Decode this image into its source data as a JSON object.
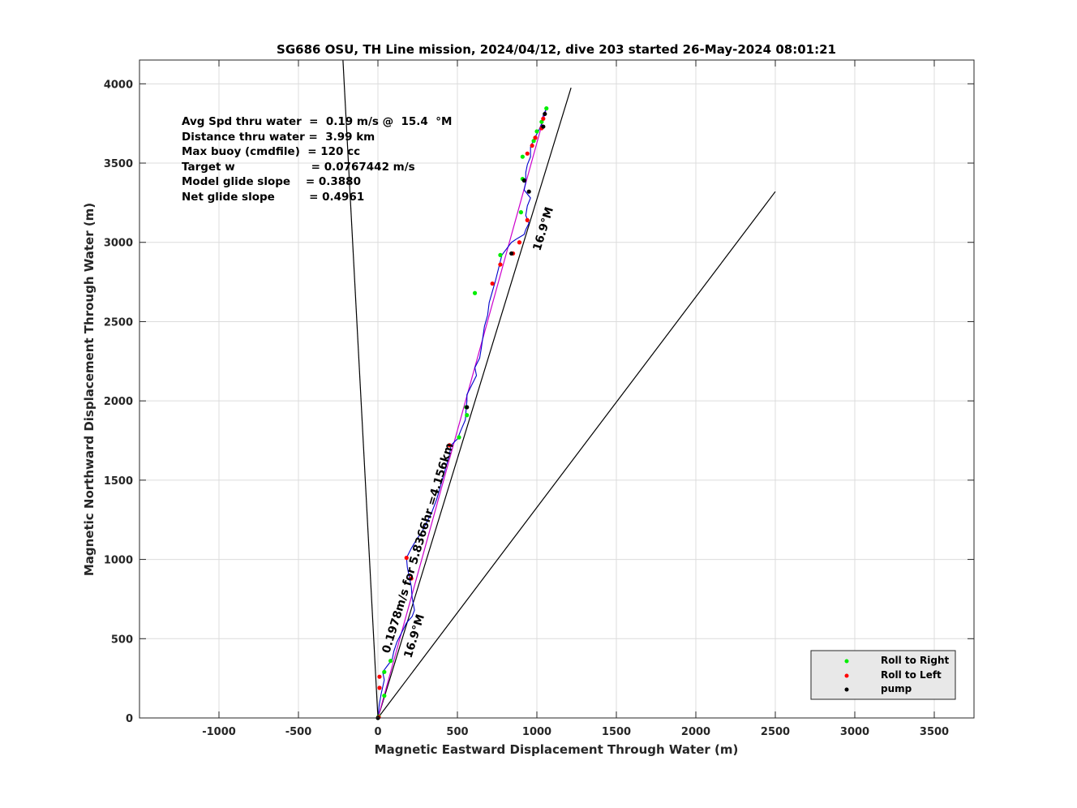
{
  "chart_data": {
    "type": "line",
    "title": "SG686 OSU, TH Line mission, 2024/04/12, dive 203 started 26-May-2024 08:01:21",
    "xlabel": "Magnetic Eastward Displacement Through Water (m)",
    "ylabel": "Magnetic Northward Displacement Through Water (m)",
    "xlim": [
      -1500,
      3750
    ],
    "ylim": [
      0,
      4150
    ],
    "xticks": [
      -1000,
      -500,
      0,
      500,
      1000,
      1500,
      2000,
      2500,
      3000,
      3500
    ],
    "xtick_labels": [
      "-1000",
      "-500",
      "0",
      "500",
      "1000",
      "1500",
      "2000",
      "2500",
      "3000",
      "3500"
    ],
    "yticks": [
      0,
      500,
      1000,
      1500,
      2000,
      2500,
      3000,
      3500,
      4000
    ],
    "ytick_labels": [
      "0",
      "500",
      "1000",
      "1500",
      "2000",
      "2500",
      "3000",
      "3500",
      "4000"
    ],
    "grid": true,
    "legend_placement": "bottom-right",
    "stats": [
      "Avg Spd thru water  =  0.19 m/s @  15.4  °M",
      "Distance thru water =  3.99 km",
      "Max buoy (cmdfile)  = 120 cc",
      "Target w                    = 0.0767442 m/s",
      "Model glide slope    = 0.3880",
      "Net glide slope         = 0.4961"
    ],
    "annotations": {
      "speed": "0.1978m/s for 5.8366hr =4.156km",
      "heading_upper": "16.9°M",
      "heading_lower": "16.9°M"
    },
    "reference_lines": [
      {
        "name": "",
        "color": "#000000",
        "points": [
          [
            0,
            0
          ],
          [
            -220,
            4150
          ]
        ]
      },
      {
        "name": "",
        "color": "#000000",
        "points": [
          [
            0,
            0
          ],
          [
            1215,
            3975
          ]
        ]
      },
      {
        "name": "",
        "color": "#000000",
        "points": [
          [
            0,
            0
          ],
          [
            2500,
            3320
          ]
        ]
      },
      {
        "name": "",
        "color": "#cc00cc",
        "points": [
          [
            0,
            0
          ],
          [
            1060,
            3845
          ]
        ]
      }
    ],
    "track": {
      "color": "#0000cc",
      "points": [
        [
          0,
          0
        ],
        [
          8,
          80
        ],
        [
          20,
          150
        ],
        [
          40,
          240
        ],
        [
          30,
          290
        ],
        [
          60,
          330
        ],
        [
          90,
          370
        ],
        [
          100,
          420
        ],
        [
          120,
          480
        ],
        [
          150,
          540
        ],
        [
          180,
          600
        ],
        [
          215,
          640
        ],
        [
          230,
          680
        ],
        [
          215,
          760
        ],
        [
          210,
          830
        ],
        [
          195,
          900
        ],
        [
          185,
          950
        ],
        [
          180,
          1010
        ],
        [
          210,
          1070
        ],
        [
          240,
          1120
        ],
        [
          280,
          1180
        ],
        [
          310,
          1240
        ],
        [
          340,
          1300
        ],
        [
          370,
          1380
        ],
        [
          390,
          1450
        ],
        [
          410,
          1520
        ],
        [
          430,
          1590
        ],
        [
          450,
          1660
        ],
        [
          460,
          1720
        ],
        [
          500,
          1760
        ],
        [
          520,
          1810
        ],
        [
          550,
          1880
        ],
        [
          555,
          1950
        ],
        [
          560,
          2000
        ],
        [
          560,
          2040
        ],
        [
          590,
          2100
        ],
        [
          620,
          2160
        ],
        [
          610,
          2210
        ],
        [
          640,
          2270
        ],
        [
          650,
          2330
        ],
        [
          660,
          2400
        ],
        [
          670,
          2470
        ],
        [
          690,
          2540
        ],
        [
          700,
          2620
        ],
        [
          720,
          2690
        ],
        [
          740,
          2760
        ],
        [
          760,
          2840
        ],
        [
          780,
          2920
        ],
        [
          810,
          2960
        ],
        [
          840,
          3000
        ],
        [
          870,
          3020
        ],
        [
          920,
          3050
        ],
        [
          930,
          3080
        ],
        [
          950,
          3120
        ],
        [
          930,
          3170
        ],
        [
          940,
          3230
        ],
        [
          960,
          3280
        ],
        [
          920,
          3330
        ],
        [
          930,
          3380
        ],
        [
          930,
          3440
        ],
        [
          940,
          3490
        ],
        [
          960,
          3540
        ],
        [
          960,
          3600
        ],
        [
          980,
          3650
        ],
        [
          1010,
          3700
        ],
        [
          1030,
          3750
        ],
        [
          1040,
          3800
        ],
        [
          1060,
          3845
        ]
      ]
    },
    "series": [
      {
        "name": "Roll to Right",
        "color": "#00ee00",
        "points": [
          [
            5,
            10
          ],
          [
            40,
            140
          ],
          [
            40,
            290
          ],
          [
            80,
            360
          ],
          [
            610,
            2680
          ],
          [
            770,
            2920
          ],
          [
            560,
            1910
          ],
          [
            555,
            1960
          ],
          [
            510,
            1770
          ],
          [
            900,
            3190
          ],
          [
            910,
            3400
          ],
          [
            910,
            3540
          ],
          [
            980,
            3640
          ],
          [
            1000,
            3700
          ],
          [
            1030,
            3760
          ],
          [
            1060,
            3845
          ]
        ]
      },
      {
        "name": "Roll to Left",
        "color": "#ff0000",
        "points": [
          [
            5,
            5
          ],
          [
            10,
            190
          ],
          [
            10,
            260
          ],
          [
            180,
            1010
          ],
          [
            210,
            880
          ],
          [
            450,
            1720
          ],
          [
            720,
            2740
          ],
          [
            770,
            2860
          ],
          [
            890,
            3000
          ],
          [
            850,
            2930
          ],
          [
            940,
            3140
          ],
          [
            940,
            3560
          ],
          [
            970,
            3610
          ],
          [
            990,
            3660
          ],
          [
            1030,
            3720
          ],
          [
            1040,
            3780
          ]
        ]
      },
      {
        "name": "pump",
        "color": "#000000",
        "points": [
          [
            0,
            0
          ],
          [
            560,
            1960
          ],
          [
            840,
            2930
          ],
          [
            920,
            3390
          ],
          [
            950,
            3320
          ],
          [
            1040,
            3730
          ],
          [
            1050,
            3810
          ]
        ]
      }
    ]
  }
}
